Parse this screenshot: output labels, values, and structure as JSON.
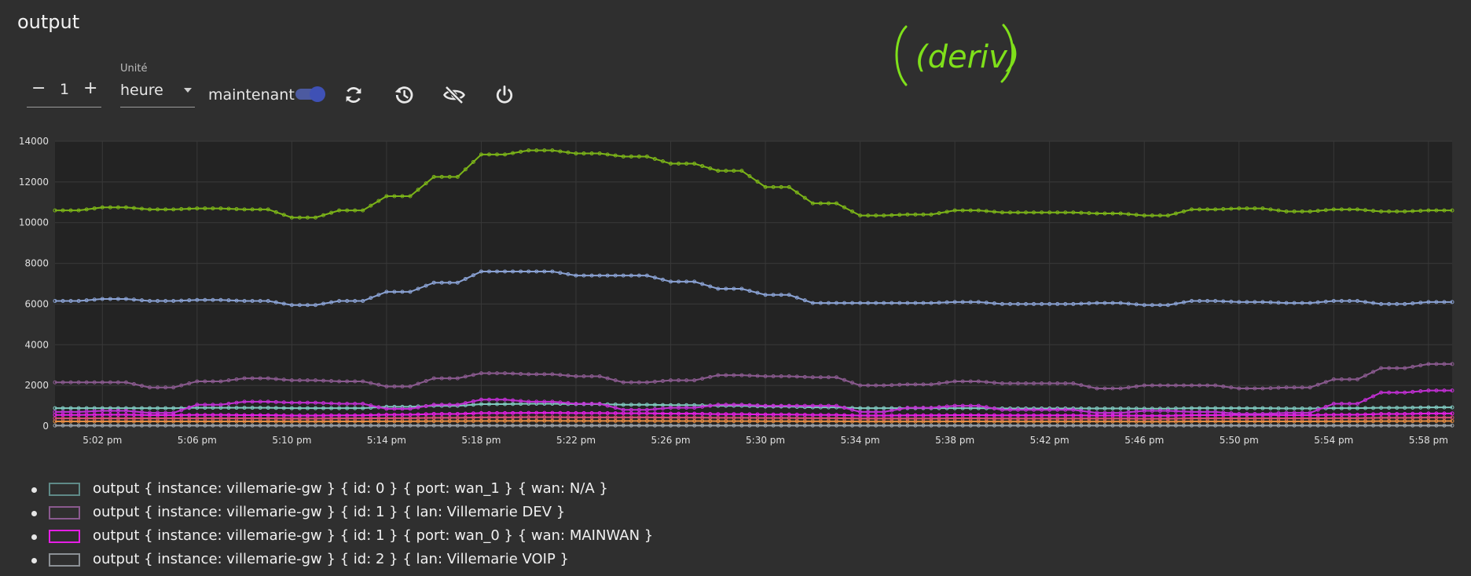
{
  "page": {
    "title": "output",
    "annotation_text": "(deriv)"
  },
  "toolbar": {
    "stepper": {
      "minus_label": "−",
      "value": "1",
      "plus_label": "+"
    },
    "unit": {
      "label": "Unité",
      "value": "heure"
    },
    "now": {
      "label": "maintenant",
      "enabled": true
    },
    "icons": [
      "refresh-icon",
      "history-icon",
      "visibility-off-icon",
      "power-icon"
    ],
    "accent_color": "#3f51b5"
  },
  "chart_data": {
    "type": "line",
    "ylim": [
      0,
      14000
    ],
    "yticks": [
      "0",
      "2000",
      "4000",
      "6000",
      "8000",
      "10000",
      "12000",
      "14000"
    ],
    "xticks": [
      "5:02 pm",
      "5:06 pm",
      "5:10 pm",
      "5:14 pm",
      "5:18 pm",
      "5:22 pm",
      "5:26 pm",
      "5:30 pm",
      "5:34 pm",
      "5:38 pm",
      "5:42 pm",
      "5:46 pm",
      "5:50 pm",
      "5:54 pm",
      "5:58 pm"
    ],
    "x": [
      "5:00 pm",
      "5:01 pm",
      "5:02 pm",
      "5:03 pm",
      "5:04 pm",
      "5:05 pm",
      "5:06 pm",
      "5:07 pm",
      "5:08 pm",
      "5:09 pm",
      "5:10 pm",
      "5:11 pm",
      "5:12 pm",
      "5:13 pm",
      "5:14 pm",
      "5:15 pm",
      "5:16 pm",
      "5:17 pm",
      "5:18 pm",
      "5:19 pm",
      "5:20 pm",
      "5:21 pm",
      "5:22 pm",
      "5:23 pm",
      "5:24 pm",
      "5:25 pm",
      "5:26 pm",
      "5:27 pm",
      "5:28 pm",
      "5:29 pm",
      "5:30 pm",
      "5:31 pm",
      "5:32 pm",
      "5:33 pm",
      "5:34 pm",
      "5:35 pm",
      "5:36 pm",
      "5:37 pm",
      "5:38 pm",
      "5:39 pm",
      "5:40 pm",
      "5:41 pm",
      "5:42 pm",
      "5:43 pm",
      "5:44 pm",
      "5:45 pm",
      "5:46 pm",
      "5:47 pm",
      "5:48 pm",
      "5:49 pm",
      "5:50 pm",
      "5:51 pm",
      "5:52 pm",
      "5:53 pm",
      "5:54 pm",
      "5:55 pm",
      "5:56 pm",
      "5:57 pm",
      "5:58 pm",
      "5:59 pm"
    ],
    "grid": true,
    "legend_position": "bottom",
    "series": [
      {
        "color": "#7cb518",
        "values": [
          10600,
          10600,
          10750,
          10750,
          10650,
          10650,
          10700,
          10700,
          10650,
          10650,
          10250,
          10250,
          10600,
          10600,
          11300,
          11300,
          12250,
          12250,
          13350,
          13350,
          13550,
          13550,
          13400,
          13400,
          13250,
          13250,
          12900,
          12900,
          12550,
          12550,
          11750,
          11750,
          10950,
          10950,
          10350,
          10350,
          10400,
          10400,
          10600,
          10600,
          10500,
          10500,
          10500,
          10500,
          10450,
          10450,
          10350,
          10350,
          10650,
          10650,
          10700,
          10700,
          10550,
          10550,
          10650,
          10650,
          10550,
          10550,
          10600,
          10600
        ]
      },
      {
        "color": "#8aa2d4",
        "values": [
          6150,
          6150,
          6250,
          6250,
          6150,
          6150,
          6200,
          6200,
          6150,
          6150,
          5950,
          5950,
          6150,
          6150,
          6600,
          6600,
          7050,
          7050,
          7600,
          7600,
          7600,
          7600,
          7400,
          7400,
          7400,
          7400,
          7100,
          7100,
          6750,
          6750,
          6450,
          6450,
          6050,
          6050,
          6050,
          6050,
          6050,
          6050,
          6100,
          6100,
          6000,
          6000,
          6000,
          6000,
          6050,
          6050,
          5950,
          5950,
          6150,
          6150,
          6100,
          6100,
          6050,
          6050,
          6150,
          6150,
          6000,
          6000,
          6100,
          6100
        ]
      },
      {
        "color": "#8a5a8f",
        "values": [
          2150,
          2150,
          2150,
          2150,
          1900,
          1900,
          2200,
          2200,
          2350,
          2350,
          2250,
          2250,
          2200,
          2200,
          1950,
          1950,
          2350,
          2350,
          2600,
          2600,
          2550,
          2550,
          2450,
          2450,
          2150,
          2150,
          2250,
          2250,
          2500,
          2500,
          2450,
          2450,
          2400,
          2400,
          2000,
          2000,
          2050,
          2050,
          2200,
          2200,
          2100,
          2100,
          2100,
          2100,
          1850,
          1850,
          2000,
          2000,
          2000,
          2000,
          1850,
          1850,
          1900,
          1900,
          2300,
          2300,
          2850,
          2850,
          3050,
          3050
        ]
      },
      {
        "color": "#c22fd4",
        "values": [
          700,
          700,
          750,
          750,
          650,
          650,
          1050,
          1050,
          1200,
          1200,
          1150,
          1150,
          1100,
          1100,
          850,
          850,
          1050,
          1050,
          1300,
          1300,
          1200,
          1200,
          1100,
          1100,
          800,
          800,
          900,
          900,
          1050,
          1050,
          1000,
          1000,
          1000,
          1000,
          700,
          700,
          900,
          900,
          1000,
          1000,
          800,
          800,
          800,
          800,
          650,
          650,
          750,
          750,
          700,
          700,
          600,
          600,
          650,
          650,
          1100,
          1100,
          1650,
          1650,
          1750,
          1750
        ]
      },
      {
        "color": "#7fc8bf",
        "values": [
          880,
          880,
          880,
          880,
          880,
          880,
          900,
          900,
          900,
          900,
          880,
          880,
          880,
          880,
          950,
          950,
          1000,
          1000,
          1080,
          1080,
          1100,
          1100,
          1080,
          1080,
          1050,
          1050,
          1030,
          1030,
          1000,
          1000,
          960,
          960,
          920,
          920,
          880,
          880,
          880,
          880,
          880,
          880,
          870,
          870,
          870,
          870,
          870,
          870,
          860,
          860,
          880,
          880,
          880,
          880,
          870,
          870,
          880,
          880,
          900,
          900,
          920,
          920
        ]
      },
      {
        "color": "#e61ee6",
        "values": [
          550,
          550,
          560,
          560,
          540,
          540,
          550,
          550,
          540,
          540,
          520,
          520,
          530,
          530,
          560,
          560,
          600,
          600,
          640,
          640,
          650,
          650,
          640,
          640,
          630,
          630,
          610,
          610,
          590,
          590,
          570,
          570,
          550,
          550,
          520,
          520,
          530,
          530,
          540,
          540,
          530,
          530,
          530,
          530,
          520,
          520,
          510,
          510,
          540,
          540,
          550,
          550,
          540,
          540,
          560,
          560,
          600,
          600,
          620,
          620
        ]
      },
      {
        "color": "#d7507a",
        "values": [
          380,
          380,
          380,
          380,
          380,
          380,
          380,
          380,
          380,
          380,
          370,
          370,
          380,
          380,
          390,
          390,
          410,
          410,
          430,
          430,
          440,
          440,
          430,
          430,
          430,
          430,
          420,
          420,
          410,
          410,
          400,
          400,
          390,
          390,
          370,
          370,
          370,
          370,
          380,
          380,
          370,
          370,
          370,
          370,
          370,
          370,
          360,
          360,
          380,
          380,
          380,
          380,
          380,
          380,
          390,
          390,
          410,
          410,
          420,
          420
        ]
      },
      {
        "color": "#e58d43",
        "values": [
          230,
          230,
          230,
          230,
          230,
          230,
          230,
          230,
          230,
          230,
          225,
          225,
          230,
          230,
          235,
          235,
          245,
          245,
          255,
          255,
          260,
          260,
          255,
          255,
          255,
          255,
          250,
          250,
          245,
          245,
          240,
          240,
          235,
          235,
          225,
          225,
          225,
          225,
          230,
          230,
          225,
          225,
          225,
          225,
          225,
          225,
          220,
          220,
          230,
          230,
          230,
          230,
          230,
          230,
          235,
          235,
          245,
          245,
          250,
          250
        ]
      },
      {
        "color": "#9aa0a6",
        "values": [
          30,
          30,
          30,
          30,
          30,
          30,
          30,
          30,
          30,
          30,
          30,
          30,
          30,
          30,
          30,
          30,
          30,
          30,
          30,
          30,
          30,
          30,
          30,
          30,
          30,
          30,
          30,
          30,
          30,
          30,
          30,
          30,
          30,
          30,
          30,
          30,
          30,
          30,
          30,
          30,
          30,
          30,
          30,
          30,
          30,
          30,
          30,
          30,
          30,
          30,
          30,
          30,
          30,
          30,
          30,
          30,
          30,
          30,
          30,
          30
        ]
      }
    ]
  },
  "legend": [
    {
      "label": "output { instance: villemarie-gw } { id: 0 } { port: wan_1 } { wan: N/A }",
      "color": "#5f8a88"
    },
    {
      "label": "output { instance: villemarie-gw } { id: 1 } { lan: Villemarie DEV }",
      "color": "#8a5a8f"
    },
    {
      "label": "output { instance: villemarie-gw } { id: 1 } { port: wan_0 } { wan: MAINWAN }",
      "color": "#e61ee6"
    },
    {
      "label": "output { instance: villemarie-gw } { id: 2 } { lan: Villemarie VOIP }",
      "color": "#8c9196"
    }
  ]
}
